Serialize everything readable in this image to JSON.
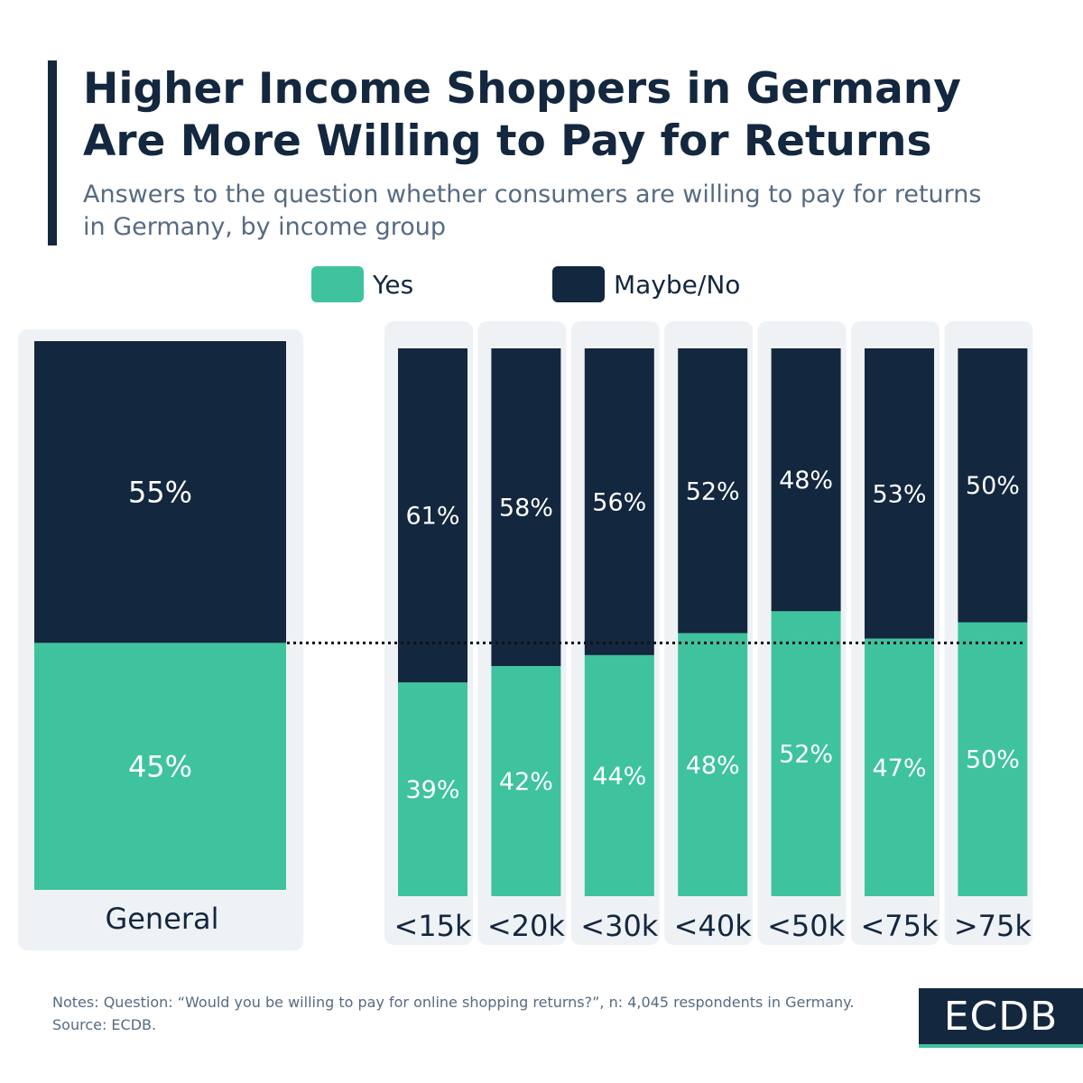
{
  "header": {
    "title": "Higher Income Shoppers in Germany Are More Willing to Pay for Returns",
    "subtitle": "Answers to the question whether consumers are willing to pay for returns in Germany, by income group"
  },
  "legend": {
    "yes_label": "Yes",
    "no_label": "Maybe/No"
  },
  "colors": {
    "yes": "#3ec39e",
    "no": "#13273f",
    "panel": "#eff2f5"
  },
  "chart_data": {
    "type": "bar",
    "stacked": true,
    "unit": "%",
    "categories": [
      "General",
      "<15k",
      "<20k",
      "<30k",
      "<40k",
      "<50k",
      "<75k",
      ">75k"
    ],
    "series": [
      {
        "name": "Yes",
        "values": [
          45,
          39,
          42,
          44,
          48,
          52,
          47,
          50
        ]
      },
      {
        "name": "Maybe/No",
        "values": [
          55,
          61,
          58,
          56,
          52,
          48,
          53,
          50
        ]
      }
    ],
    "labels": {
      "Yes": [
        "45%",
        "39%",
        "42%",
        "44%",
        "48%",
        "52%",
        "47%",
        "50%"
      ],
      "Maybe/No": [
        "55%",
        "61%",
        "58%",
        "56%",
        "52%",
        "48%",
        "53%",
        "50%"
      ]
    },
    "ylim": [
      0,
      100
    ],
    "reference_line": {
      "value": 45,
      "style": "dotted"
    },
    "legend_position": "top"
  },
  "footer": {
    "notes": "Notes: Question: “Would you be willing to pay for online shopping returns?”, n: 4,045 respondents in Germany.",
    "source": "Source: ECDB.",
    "logo": "ECDB"
  }
}
